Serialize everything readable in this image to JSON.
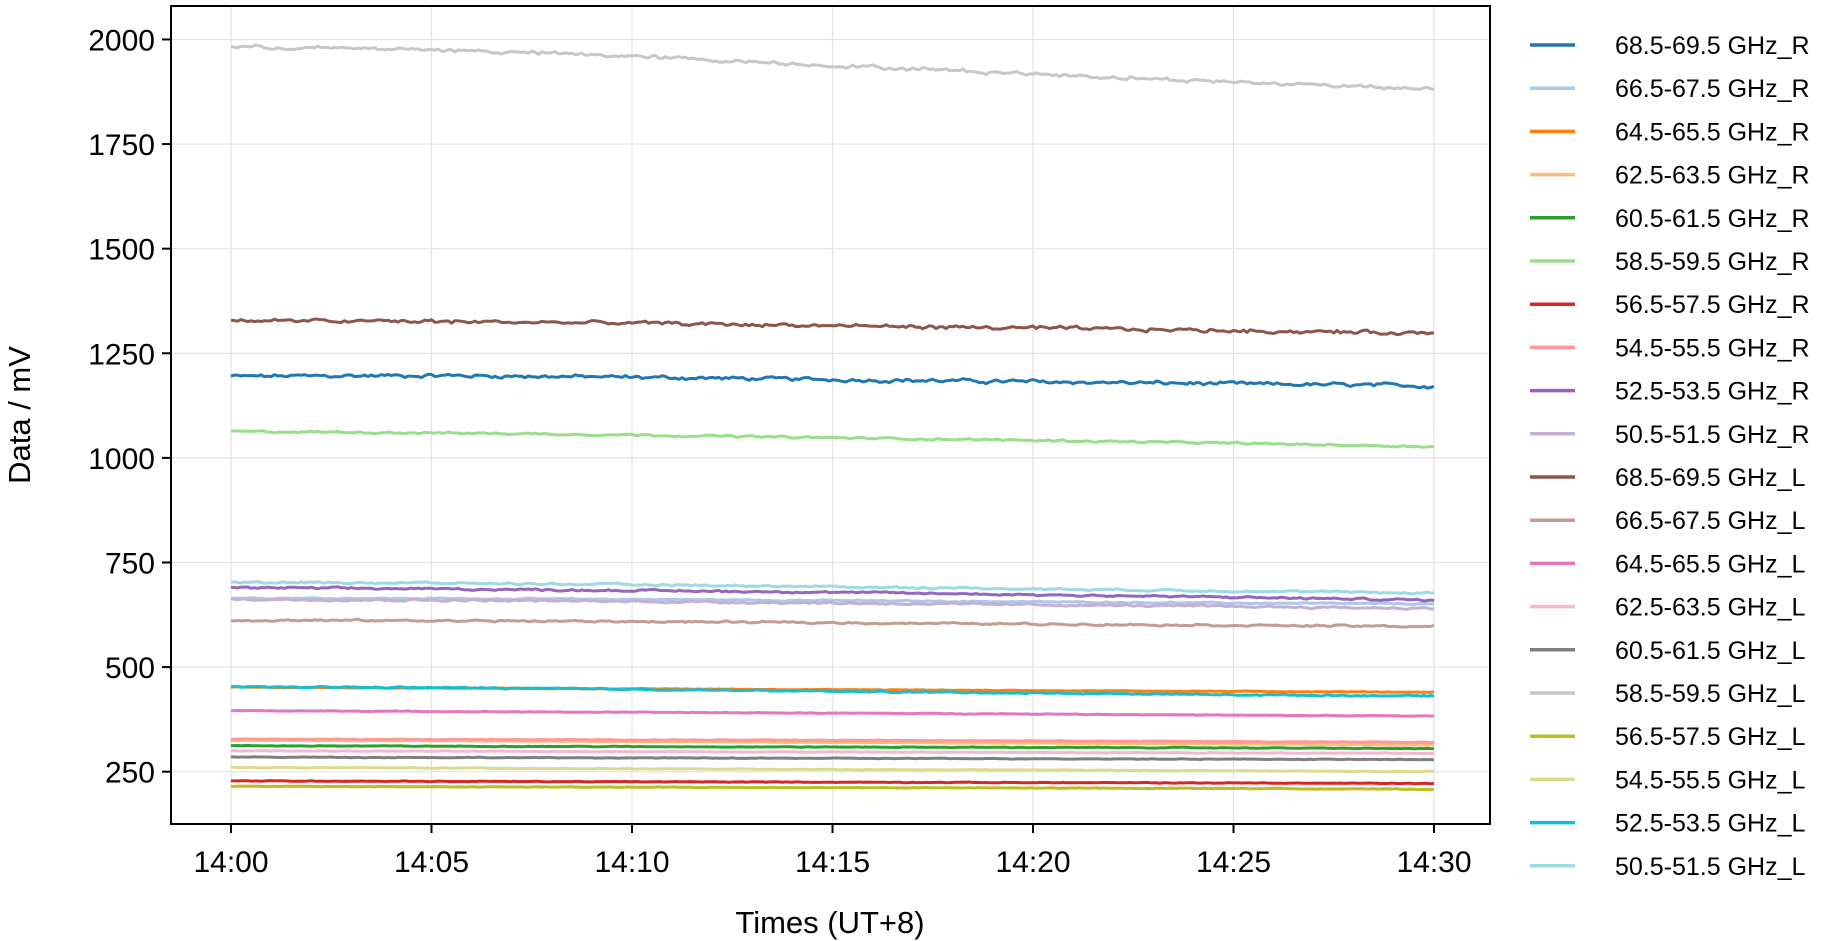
{
  "chart_data": {
    "type": "line",
    "xlabel": "Times (UT+8)",
    "ylabel": "Data / mV",
    "x_ticks": [
      "14:00",
      "14:05",
      "14:10",
      "14:15",
      "14:20",
      "14:25",
      "14:30"
    ],
    "x_range_minutes": [
      0,
      30
    ],
    "y_ticks": [
      250,
      500,
      750,
      1000,
      1250,
      1500,
      1750,
      2000
    ],
    "ylim": [
      125,
      2080
    ],
    "grid": true,
    "legend_placement": "outside-right",
    "x_minutes": [
      0,
      5,
      10,
      15,
      20,
      25,
      30
    ],
    "series": [
      {
        "name": "68.5-69.5 GHz_R",
        "color": "#1f77b4",
        "values": [
          1195,
          1197,
          1193,
          1187,
          1182,
          1177,
          1172
        ],
        "noise": 6
      },
      {
        "name": "66.5-67.5 GHz_R",
        "color": "#aec7e8",
        "values": [
          665,
          664,
          662,
          659,
          656,
          653,
          651
        ],
        "noise": 2
      },
      {
        "name": "64.5-65.5 GHz_R",
        "color": "#ff7f0e",
        "values": [
          452,
          450,
          448,
          446,
          444,
          442,
          440
        ],
        "noise": 1
      },
      {
        "name": "62.5-63.5 GHz_R",
        "color": "#ffbb78",
        "values": [
          325,
          324,
          322,
          320,
          318,
          316,
          314
        ],
        "noise": 1
      },
      {
        "name": "60.5-61.5 GHz_R",
        "color": "#2ca02c",
        "values": [
          312,
          311,
          310,
          309,
          308,
          307,
          305
        ],
        "noise": 1
      },
      {
        "name": "58.5-59.5 GHz_R",
        "color": "#98df8a",
        "values": [
          1063,
          1060,
          1055,
          1048,
          1042,
          1035,
          1027
        ],
        "noise": 3
      },
      {
        "name": "56.5-57.5 GHz_R",
        "color": "#d62728",
        "values": [
          228,
          227,
          226,
          225,
          224,
          223,
          222
        ],
        "noise": 1
      },
      {
        "name": "54.5-55.5 GHz_R",
        "color": "#ff9896",
        "values": [
          328,
          327,
          326,
          325,
          324,
          322,
          320
        ],
        "noise": 1
      },
      {
        "name": "52.5-53.5 GHz_R",
        "color": "#9467bd",
        "values": [
          690,
          687,
          683,
          679,
          673,
          667,
          660
        ],
        "noise": 3
      },
      {
        "name": "50.5-51.5 GHz_R",
        "color": "#c5b0d5",
        "values": [
          662,
          660,
          657,
          653,
          649,
          645,
          640
        ],
        "noise": 3
      },
      {
        "name": "68.5-69.5 GHz_L",
        "color": "#8c564b",
        "values": [
          1328,
          1326,
          1322,
          1316,
          1310,
          1304,
          1298
        ],
        "noise": 6
      },
      {
        "name": "66.5-67.5 GHz_L",
        "color": "#c49c94",
        "values": [
          612,
          611,
          609,
          606,
          603,
          600,
          597
        ],
        "noise": 3
      },
      {
        "name": "64.5-65.5 GHz_L",
        "color": "#e377c2",
        "values": [
          396,
          394,
          392,
          390,
          388,
          385,
          383
        ],
        "noise": 1
      },
      {
        "name": "62.5-63.5 GHz_L",
        "color": "#f7b6d2",
        "values": [
          300,
          299,
          298,
          297,
          296,
          295,
          294
        ],
        "noise": 1
      },
      {
        "name": "60.5-61.5 GHz_L",
        "color": "#7f7f7f",
        "values": [
          285,
          284,
          283,
          282,
          281,
          280,
          279
        ],
        "noise": 1
      },
      {
        "name": "58.5-59.5 GHz_L",
        "color": "#c7c7c7",
        "values": [
          1982,
          1976,
          1960,
          1938,
          1918,
          1898,
          1883
        ],
        "noise": 6
      },
      {
        "name": "56.5-57.5 GHz_L",
        "color": "#bcbd22",
        "values": [
          215,
          214,
          213,
          212,
          211,
          210,
          208
        ],
        "noise": 1
      },
      {
        "name": "54.5-55.5 GHz_L",
        "color": "#dbdb8d",
        "values": [
          260,
          259,
          257,
          255,
          254,
          252,
          250
        ],
        "noise": 1
      },
      {
        "name": "52.5-53.5 GHz_L",
        "color": "#17becf",
        "values": [
          453,
          451,
          447,
          442,
          438,
          434,
          431
        ],
        "noise": 2
      },
      {
        "name": "50.5-51.5 GHz_L",
        "color": "#9edae5",
        "values": [
          703,
          701,
          697,
          692,
          687,
          682,
          677
        ],
        "noise": 3
      }
    ]
  }
}
